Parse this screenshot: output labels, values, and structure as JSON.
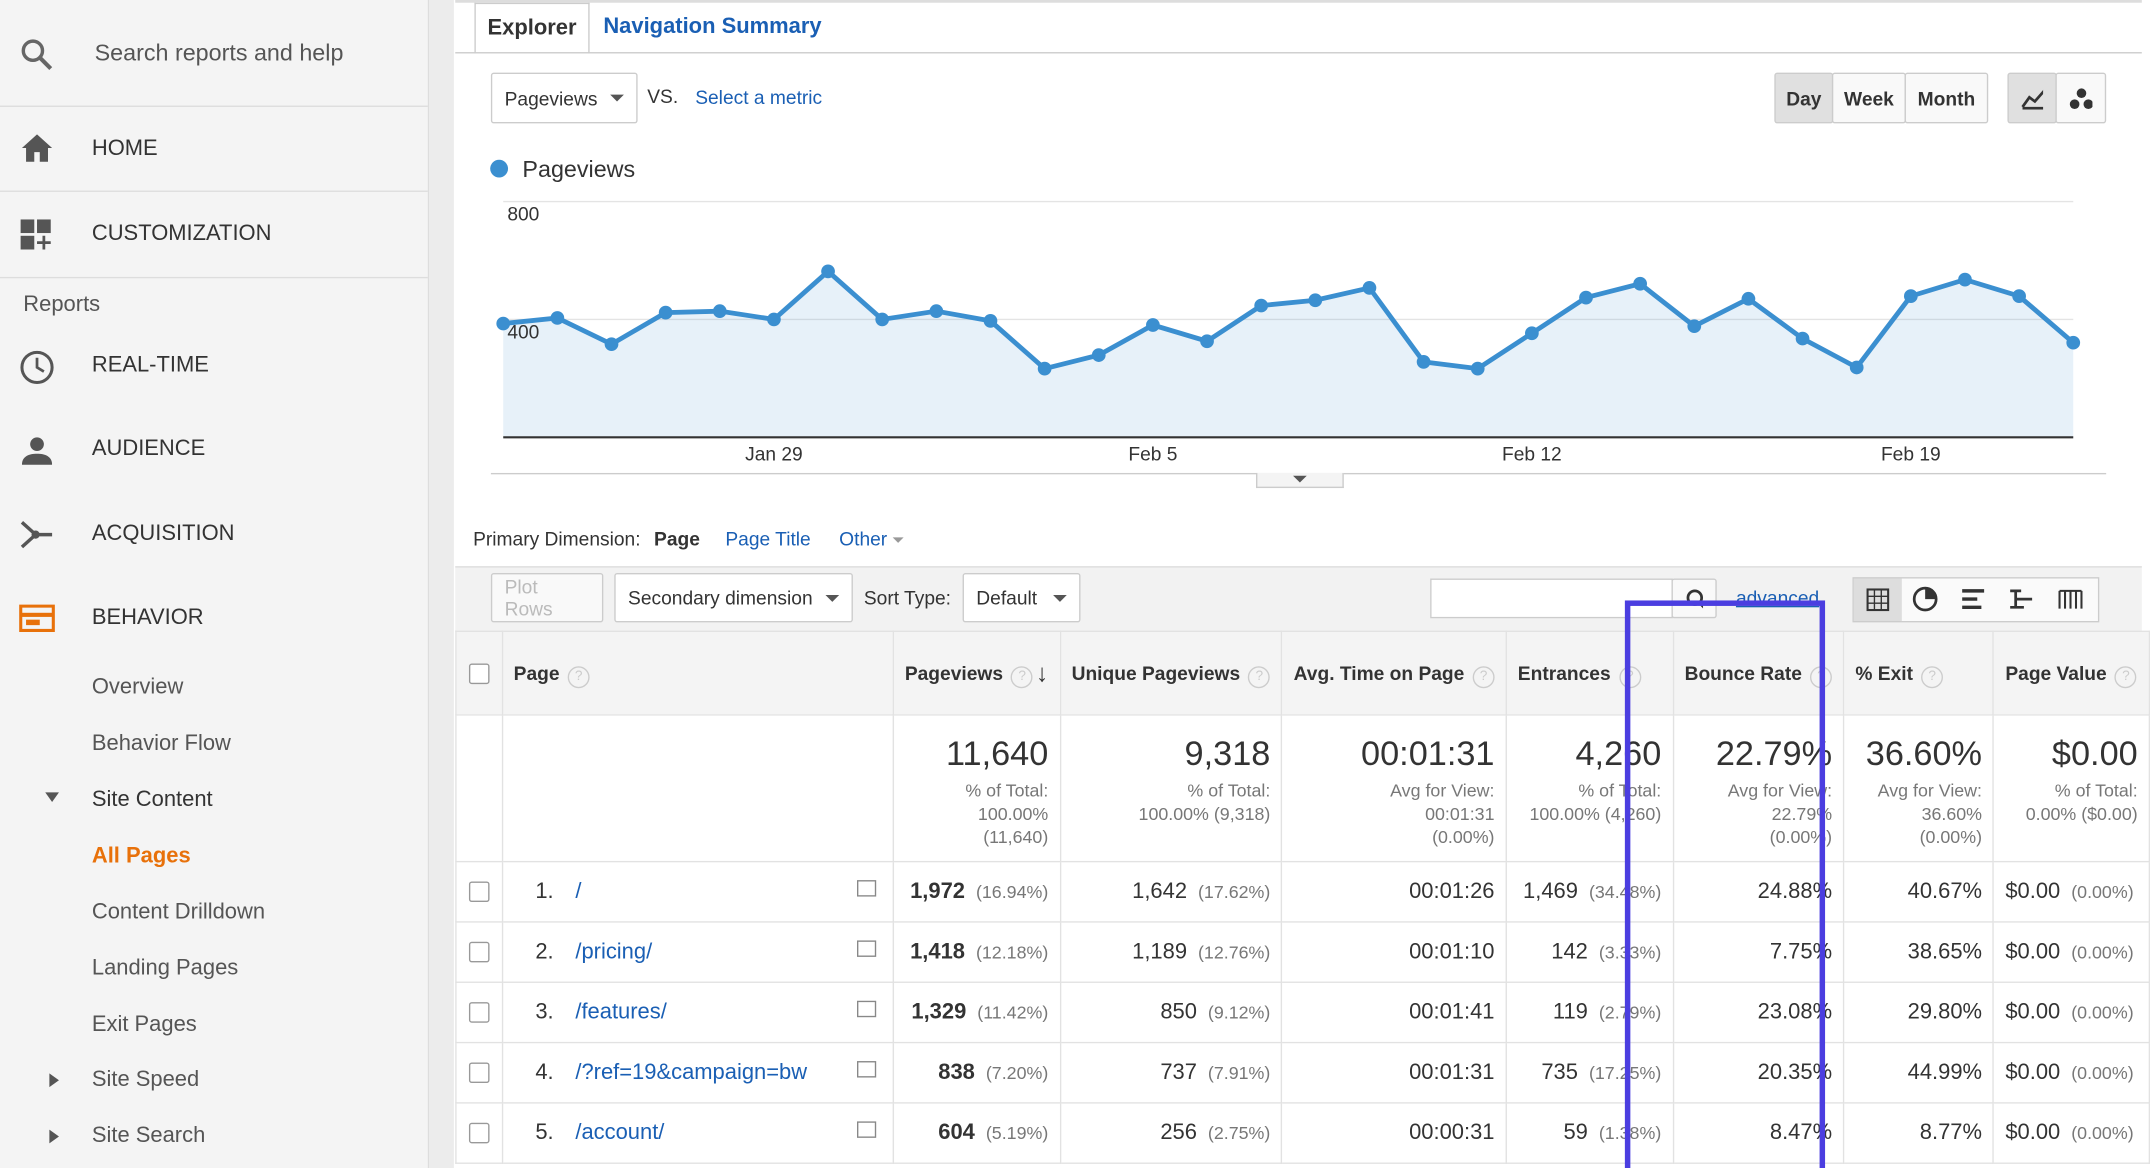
{
  "sidebar": {
    "search": "Search reports and help",
    "home": "HOME",
    "customization": "CUSTOMIZATION",
    "reports": "Reports",
    "nav": [
      "REAL-TIME",
      "AUDIENCE",
      "ACQUISITION",
      "BEHAVIOR"
    ],
    "behavior_items": [
      "Overview",
      "Behavior Flow",
      "Site Content",
      "All Pages",
      "Content Drilldown",
      "Landing Pages",
      "Exit Pages",
      "Site Speed",
      "Site Search"
    ]
  },
  "tabs": [
    "Explorer",
    "Navigation Summary"
  ],
  "metric": "Pageviews",
  "vs": "VS.",
  "select_metric": "Select a metric",
  "periods": [
    "Day",
    "Week",
    "Month"
  ],
  "chart_data": {
    "type": "line",
    "categories": [
      null,
      null,
      null,
      null,
      null,
      "Jan 29",
      null,
      null,
      null,
      null,
      null,
      null,
      "Feb 5",
      null,
      null,
      null,
      null,
      null,
      null,
      "Feb 12",
      null,
      null,
      null,
      null,
      null,
      null,
      "Feb 19",
      null,
      null,
      null
    ],
    "series": [
      {
        "name": "Pageviews",
        "color": "#3b8fd0",
        "values": [
          386,
          405,
          316,
          423,
          428,
          400,
          563,
          400,
          428,
          395,
          233,
          279,
          381,
          326,
          447,
          465,
          507,
          256,
          233,
          353,
          474,
          521,
          377,
          470,
          335,
          237,
          479,
          535,
          479,
          321
        ]
      }
    ],
    "ylim": [
      0,
      800
    ],
    "yticks": [
      400,
      800
    ],
    "grid": true
  },
  "dimension": {
    "label": "Primary Dimension:",
    "options": [
      "Page",
      "Page Title",
      "Other"
    ]
  },
  "toolbar": {
    "plot_rows": "Plot Rows",
    "secondary": "Secondary dimension",
    "sort_label": "Sort Type:",
    "sort": "Default",
    "advanced": "advanced"
  },
  "table": {
    "columns": [
      "Page",
      "Pageviews",
      "Unique Pageviews",
      "Avg. Time on Page",
      "Entrances",
      "Bounce Rate",
      "% Exit",
      "Page Value"
    ],
    "totals": [
      {
        "value": "11,640",
        "lines": [
          "% of Total:",
          "100.00%",
          "(11,640)"
        ]
      },
      {
        "value": "9,318",
        "lines": [
          "% of Total:",
          "100.00% (9,318)"
        ]
      },
      {
        "value": "00:01:31",
        "lines": [
          "Avg for View:",
          "00:01:31",
          "(0.00%)"
        ]
      },
      {
        "value": "4,260",
        "lines": [
          "% of Total:",
          "100.00% (4,260)"
        ]
      },
      {
        "value": "22.79%",
        "lines": [
          "Avg for View:",
          "22.79%",
          "(0.00%)"
        ]
      },
      {
        "value": "36.60%",
        "lines": [
          "Avg for View:",
          "36.60%",
          "(0.00%)"
        ]
      },
      {
        "value": "$0.00",
        "lines": [
          "% of Total:",
          "0.00% ($0.00)"
        ]
      }
    ],
    "rows": [
      [
        "1.",
        "/",
        "1,972",
        "(16.94%)",
        "1,642",
        "(17.62%)",
        "00:01:26",
        "1,469",
        "(34.48%)",
        "24.88%",
        "40.67%",
        "$0.00",
        "(0.00%)"
      ],
      [
        "2.",
        "/pricing/",
        "1,418",
        "(12.18%)",
        "1,189",
        "(12.76%)",
        "00:01:10",
        "142",
        "(3.33%)",
        "7.75%",
        "38.65%",
        "$0.00",
        "(0.00%)"
      ],
      [
        "3.",
        "/features/",
        "1,329",
        "(11.42%)",
        "850",
        "(9.12%)",
        "00:01:41",
        "119",
        "(2.79%)",
        "23.08%",
        "29.80%",
        "$0.00",
        "(0.00%)"
      ],
      [
        "4.",
        "/?ref=19&campaign=bw",
        "838",
        "(7.20%)",
        "737",
        "(7.91%)",
        "00:01:31",
        "735",
        "(17.25%)",
        "20.35%",
        "44.99%",
        "$0.00",
        "(0.00%)"
      ],
      [
        "5.",
        "/account/",
        "604",
        "(5.19%)",
        "256",
        "(2.75%)",
        "00:00:31",
        "59",
        "(1.38%)",
        "8.47%",
        "8.77%",
        "$0.00",
        "(0.00%)"
      ]
    ]
  }
}
